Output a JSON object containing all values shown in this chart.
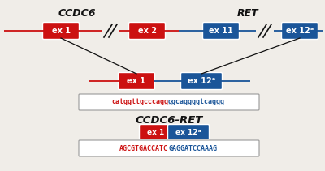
{
  "bg_color": "#f0ede8",
  "gene1_label": "CCDC6",
  "gene2_label": "RET",
  "fusion_label": "CCDC6-RET",
  "red_color": "#cc1111",
  "blue_color": "#1a5599",
  "seq1_red": "catggttgcccagg",
  "seq1_blue": "ggcaggggtcaggg",
  "seq2_red": "AGCGTGACCATC",
  "seq2_blue": "GAGGATCCAAAG",
  "ex1_label": "ex 1",
  "ex2_label": "ex 2",
  "ex11_label": "ex 11",
  "ex12a_label": "ex 12ᵃ",
  "line_color": "#111111"
}
